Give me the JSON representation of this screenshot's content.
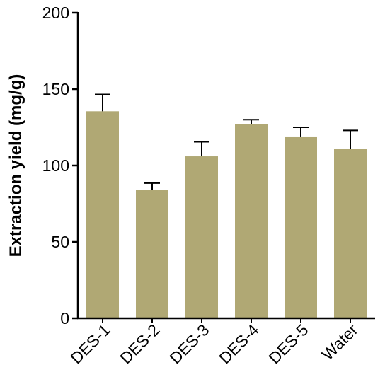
{
  "chart_data": {
    "type": "bar",
    "title": "",
    "xlabel": "",
    "ylabel": "Extraction yield (mg/g)",
    "categories": [
      "DES-1",
      "DES-2",
      "DES-3",
      "DES-4",
      "DES-5",
      "Water"
    ],
    "values": [
      135.5,
      84,
      106,
      127,
      119,
      111
    ],
    "error_upper": [
      11,
      4.5,
      9.5,
      3,
      6,
      12
    ],
    "ylim": [
      0,
      200
    ],
    "yticks": [
      0,
      50,
      100,
      150,
      200
    ],
    "grid": false,
    "legend": "none",
    "bar_color": "#b0a874",
    "axis_color": "#000000"
  }
}
